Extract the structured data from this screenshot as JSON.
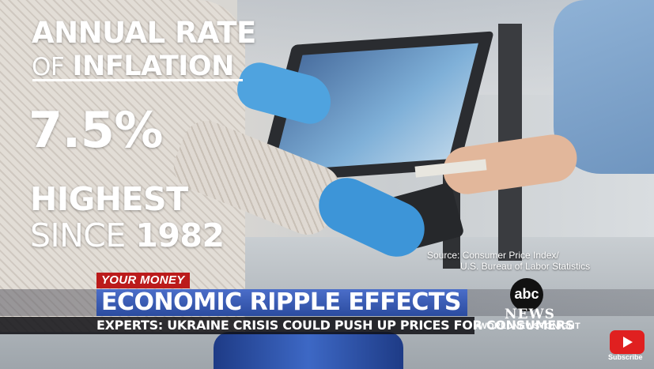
{
  "headline_graphic": {
    "line1": "ANNUAL RATE",
    "line2_prefix": "OF",
    "line2_emph": "INFLATION",
    "rate": "7.5%",
    "line4": "HIGHEST",
    "line5_prefix": "SINCE",
    "line5_year": "1982"
  },
  "source": {
    "line1": "Source: Consumer Price Index/",
    "line2": "U.S. Bureau of Labor Statistics"
  },
  "lower_third": {
    "kicker": "YOUR MONEY",
    "headline": "ECONOMIC RIPPLE EFFECTS",
    "subheadline": "EXPERTS: UKRAINE CRISIS COULD PUSH UP PRICES FOR CONSUMERS"
  },
  "network": {
    "logo": "abc",
    "name": "NEWS",
    "hashtag": "#WORLDNEWSTONIGHT"
  },
  "subscribe": {
    "label": "Subscribe",
    "icon": "youtube-play-icon"
  },
  "colors": {
    "kicker_red": "#bb1b1b",
    "headline_blue": "#2b4c9f",
    "youtube_red": "#e02020"
  }
}
